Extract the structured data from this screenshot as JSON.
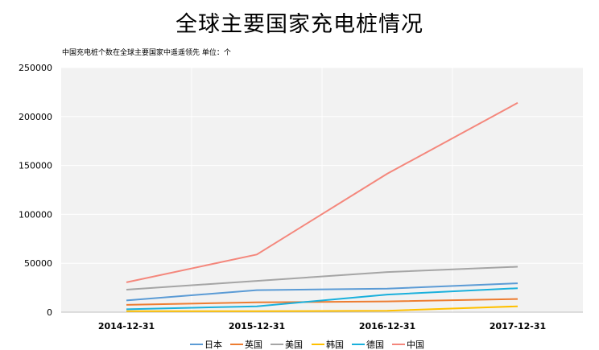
{
  "chart_data": {
    "type": "line",
    "title": "全球主要国家充电桩情况",
    "subtitle": "中国充电桩个数在全球主要国家中遥遥领先  单位：个",
    "categories": [
      "2014-12-31",
      "2015-12-31",
      "2016-12-31",
      "2017-12-31"
    ],
    "ylim": [
      0,
      250000
    ],
    "yticks": [
      0,
      50000,
      100000,
      150000,
      200000,
      250000
    ],
    "grid": true,
    "legend_position": "bottom",
    "series": [
      {
        "name": "日本",
        "color": "#5b9bd5",
        "values": [
          12000,
          22500,
          24000,
          29500
        ]
      },
      {
        "name": "英国",
        "color": "#ed7d31",
        "values": [
          7500,
          10000,
          11000,
          13500
        ]
      },
      {
        "name": "美国",
        "color": "#a5a5a5",
        "values": [
          23000,
          32000,
          41000,
          46500
        ]
      },
      {
        "name": "韩国",
        "color": "#ffc000",
        "values": [
          1000,
          1000,
          1500,
          6000
        ]
      },
      {
        "name": "德国",
        "color": "#1ab0dc",
        "values": [
          3000,
          6000,
          18000,
          24500
        ]
      },
      {
        "name": "中国",
        "color": "#f4877c",
        "values": [
          30500,
          59000,
          141500,
          214000
        ]
      }
    ]
  }
}
